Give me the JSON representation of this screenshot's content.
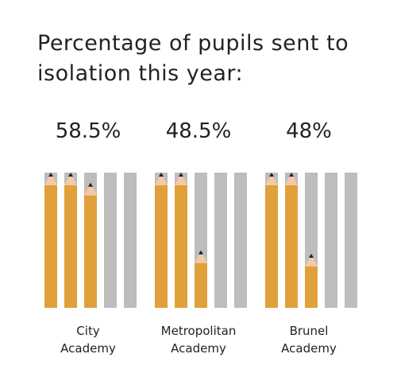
{
  "chart_data": {
    "type": "bar",
    "title": "Percentage of pupils sent to isolation this year:",
    "categories": [
      "City Academy",
      "Metropolitan Academy",
      "Brunel Academy"
    ],
    "category_lines": [
      [
        "City",
        "Academy"
      ],
      [
        "Metropolitan",
        "Academy"
      ],
      [
        "Brunel",
        "Academy"
      ]
    ],
    "value_labels": [
      "58.5%",
      "48.5%",
      "48%"
    ],
    "values": [
      58.5,
      48.5,
      48
    ],
    "units_per_full_icon": 20,
    "icons_per_category": 5,
    "icon": "pencil-icon",
    "colors": {
      "filled": "#E0A03A",
      "empty": "#BDBDBD",
      "tip_wood": "#F3C9A8",
      "tip_lead": "#222222",
      "text": "#222222"
    }
  }
}
